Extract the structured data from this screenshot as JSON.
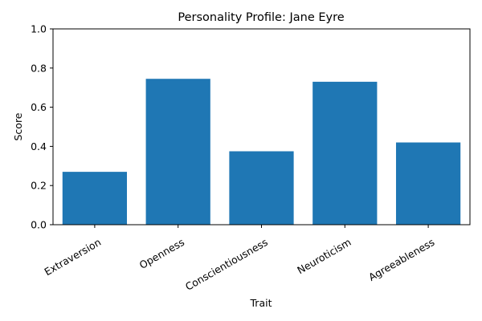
{
  "chart_data": {
    "type": "bar",
    "title": "Personality Profile: Jane Eyre",
    "xlabel": "Trait",
    "ylabel": "Score",
    "categories": [
      "Extraversion",
      "Openness",
      "Conscientiousness",
      "Neuroticism",
      "Agreeableness"
    ],
    "values": [
      0.27,
      0.745,
      0.375,
      0.73,
      0.42
    ],
    "ylim": [
      0,
      1
    ],
    "yticks": [
      "0.0",
      "0.2",
      "0.4",
      "0.6",
      "0.8",
      "1.0"
    ],
    "bar_color": "#1f77b4",
    "grid": false,
    "legend": "none"
  }
}
